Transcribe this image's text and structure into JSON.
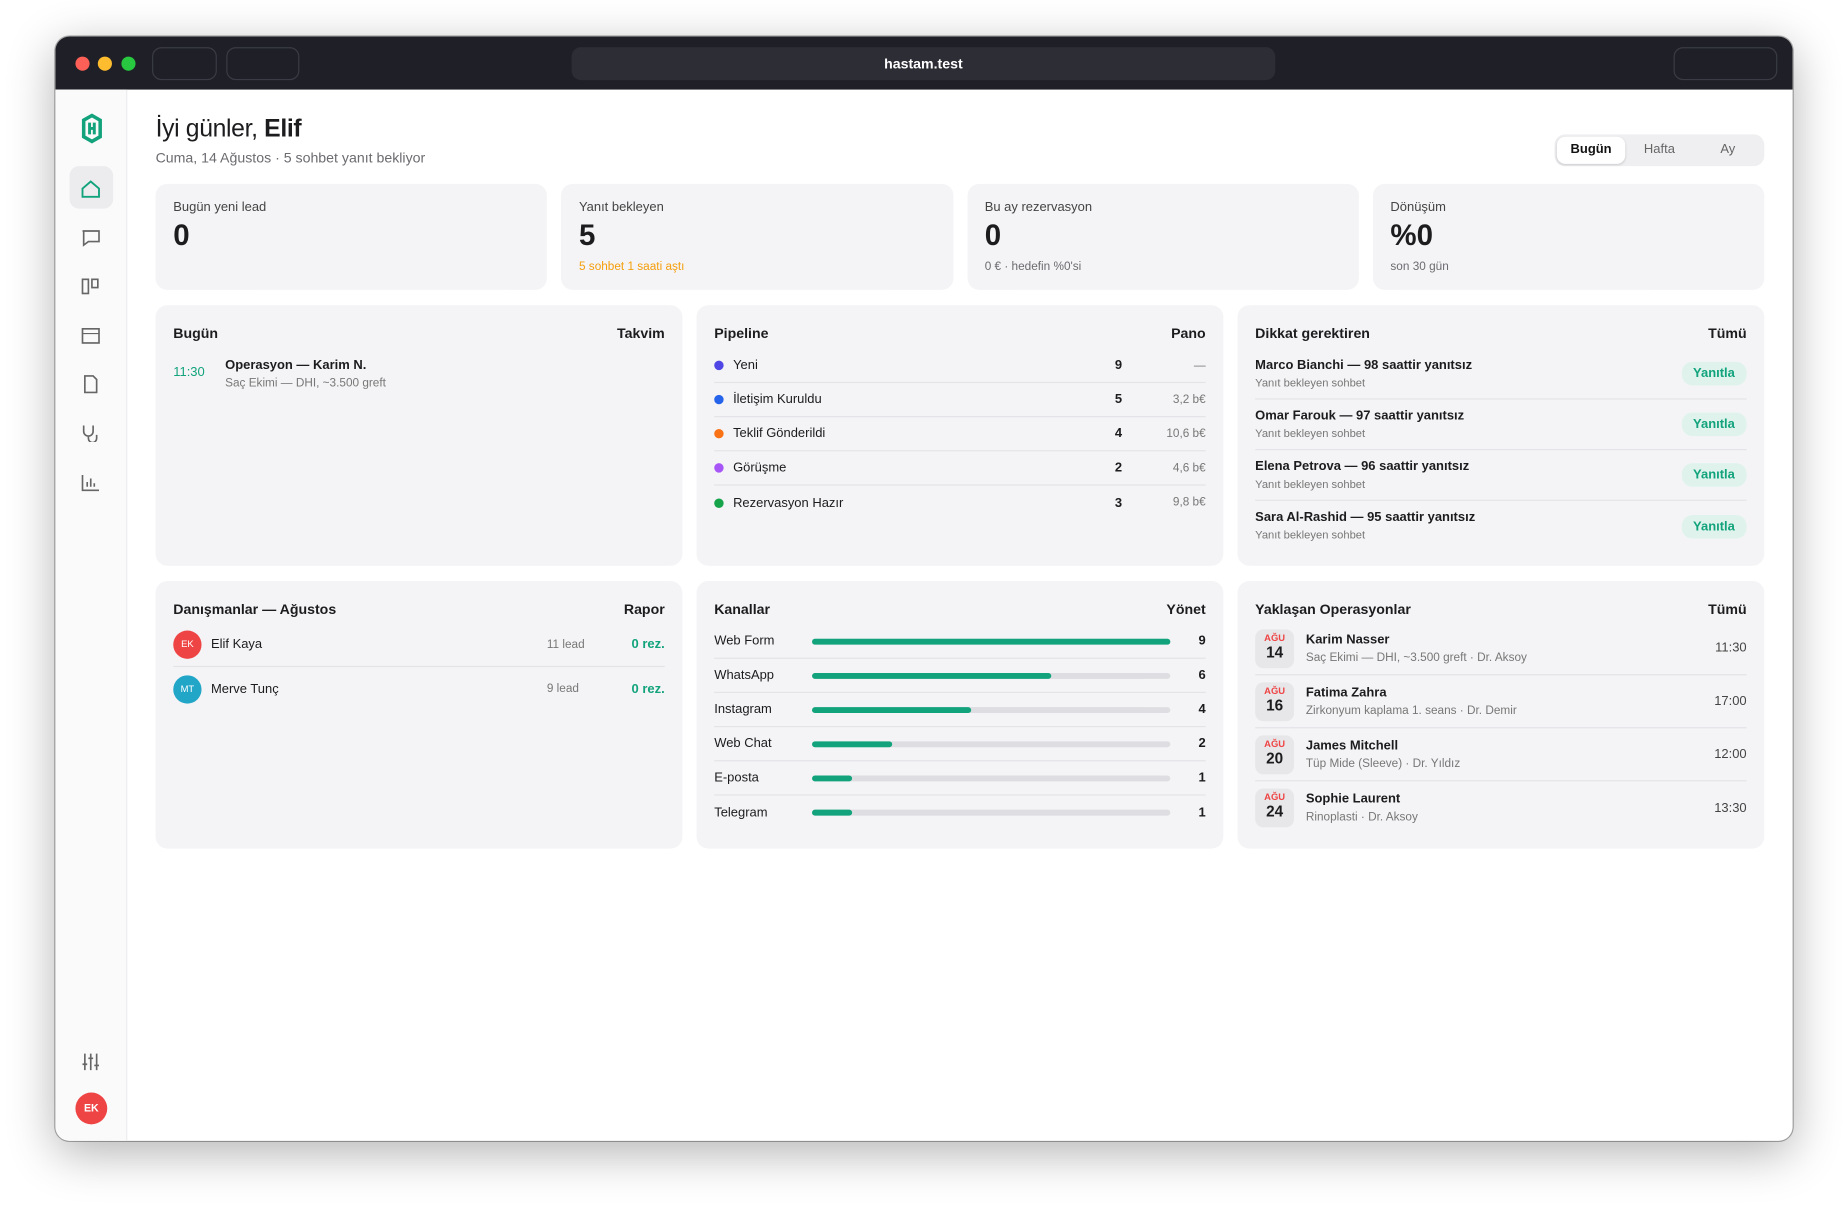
{
  "browser": {
    "url": "hastam.test"
  },
  "sidebar": {
    "avatar": "EK"
  },
  "header": {
    "greeting": "İyi günler,",
    "name": "Elif",
    "subtitle": "Cuma, 14 Ağustos · 5 sohbet yanıt bekliyor",
    "tabs": [
      "Bugün",
      "Hafta",
      "Ay"
    ]
  },
  "stats": [
    {
      "label": "Bugün yeni lead",
      "value": "0"
    },
    {
      "label": "Yanıt bekleyen",
      "value": "5",
      "note": "5 sohbet 1 saati aştı"
    },
    {
      "label": "Bu ay rezervasyon",
      "value": "0",
      "note": "0 € · hedefin %0'si"
    },
    {
      "label": "Dönüşüm",
      "value": "%0",
      "note": "son 30 gün"
    }
  ],
  "today": {
    "title": "Bugün",
    "link": "Takvim",
    "items": [
      {
        "time": "11:30",
        "title": "Operasyon — Karim N.",
        "detail": "Saç Ekimi — DHI, ~3.500 greft"
      }
    ]
  },
  "pipeline": {
    "title": "Pipeline",
    "link": "Pano",
    "stages": [
      {
        "name": "Yeni",
        "color": "#4f46e5",
        "count": 9,
        "amount": "—"
      },
      {
        "name": "İletişim Kuruldu",
        "color": "#2563eb",
        "count": 5,
        "amount": "3,2 b€"
      },
      {
        "name": "Teklif Gönderildi",
        "color": "#f97316",
        "count": 4,
        "amount": "10,6 b€"
      },
      {
        "name": "Görüşme",
        "color": "#a855f7",
        "count": 2,
        "amount": "4,6 b€"
      },
      {
        "name": "Rezervasyon Hazır",
        "color": "#16a34a",
        "count": 3,
        "amount": "9,8 b€"
      }
    ]
  },
  "attention": {
    "title": "Dikkat gerektiren",
    "link": "Tümü",
    "items": [
      {
        "title": "Marco Bianchi — 98 saattir yanıtsız",
        "detail": "Yanıt bekleyen sohbet",
        "action": "Yanıtla"
      },
      {
        "title": "Omar Farouk — 97 saattir yanıtsız",
        "detail": "Yanıt bekleyen sohbet",
        "action": "Yanıtla"
      },
      {
        "title": "Elena Petrova — 96 saattir yanıtsız",
        "detail": "Yanıt bekleyen sohbet",
        "action": "Yanıtla"
      },
      {
        "title": "Sara Al-Rashid — 95 saattir yanıtsız",
        "detail": "Yanıt bekleyen sohbet",
        "action": "Yanıtla"
      }
    ]
  },
  "consultants": {
    "title": "Danışmanlar — Ağustos",
    "link": "Rapor",
    "rows": [
      {
        "initials": "EK",
        "color": "#ef4444",
        "name": "Elif Kaya",
        "leads": "11 lead",
        "reservations": "0 rez."
      },
      {
        "initials": "MT",
        "color": "#22a6c8",
        "name": "Merve Tunç",
        "leads": "9 lead",
        "reservations": "0 rez."
      }
    ]
  },
  "channels": {
    "title": "Kanallar",
    "link": "Yönet",
    "color": "#12a37c",
    "rows": [
      {
        "name": "Web Form",
        "value": 9
      },
      {
        "name": "WhatsApp",
        "value": 6
      },
      {
        "name": "Instagram",
        "value": 4
      },
      {
        "name": "Web Chat",
        "value": 2
      },
      {
        "name": "E-posta",
        "value": 1
      },
      {
        "name": "Telegram",
        "value": 1
      }
    ]
  },
  "upcoming": {
    "title": "Yaklaşan Operasyonlar",
    "link": "Tümü",
    "items": [
      {
        "month": "AĞU",
        "day": "14",
        "name": "Karim Nasser",
        "detail": "Saç Ekimi — DHI, ~3.500 greft · Dr. Aksoy",
        "time": "11:30"
      },
      {
        "month": "AĞU",
        "day": "16",
        "name": "Fatima Zahra",
        "detail": "Zirkonyum kaplama 1. seans · Dr. Demir",
        "time": "17:00"
      },
      {
        "month": "AĞU",
        "day": "20",
        "name": "James Mitchell",
        "detail": "Tüp Mide (Sleeve) · Dr. Yıldız",
        "time": "12:00"
      },
      {
        "month": "AĞU",
        "day": "24",
        "name": "Sophie Laurent",
        "detail": "Rinoplasti · Dr. Aksoy",
        "time": "13:30"
      }
    ]
  }
}
